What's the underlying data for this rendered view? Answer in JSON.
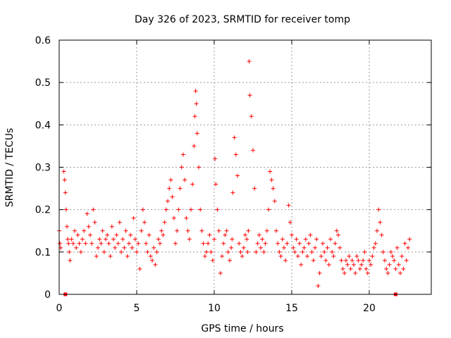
{
  "chart_data": {
    "type": "scatter",
    "title": "Day 326 of 2023, SRMTID for receiver tomp",
    "xlabel": "GPS time / hours",
    "ylabel": "SRMTID / TECUs",
    "xlim": [
      0,
      24
    ],
    "ylim": [
      0,
      0.6
    ],
    "xticks": [
      0,
      5,
      10,
      15,
      20
    ],
    "yticks": [
      0,
      0.1,
      0.2,
      0.3,
      0.4,
      0.5,
      0.6
    ],
    "ytick_labels": [
      "0",
      "0.1",
      "0.2",
      "0.3",
      "0.4",
      "0.5",
      "0.6"
    ],
    "grid": true,
    "marker": "+",
    "color": "#ff0000",
    "series": [
      {
        "name": "SRMTID",
        "x": [
          0.0,
          0.05,
          0.1,
          0.3,
          0.35,
          0.4,
          0.45,
          0.5,
          0.55,
          0.6,
          0.65,
          0.7,
          0.8,
          0.9,
          1.0,
          1.1,
          1.2,
          1.3,
          1.4,
          1.5,
          1.6,
          1.7,
          1.8,
          1.9,
          2.0,
          2.1,
          2.2,
          2.3,
          2.4,
          2.5,
          2.6,
          2.7,
          2.8,
          2.9,
          3.0,
          3.1,
          3.2,
          3.3,
          3.4,
          3.5,
          3.6,
          3.7,
          3.8,
          3.9,
          4.0,
          4.1,
          4.2,
          4.3,
          4.4,
          4.5,
          4.6,
          4.7,
          4.8,
          4.9,
          5.0,
          5.1,
          5.2,
          5.3,
          5.4,
          5.5,
          5.6,
          5.7,
          5.8,
          5.9,
          6.0,
          6.1,
          6.2,
          6.3,
          6.4,
          6.5,
          6.6,
          6.7,
          6.8,
          6.9,
          7.0,
          7.1,
          7.2,
          7.3,
          7.4,
          7.5,
          7.6,
          7.7,
          7.8,
          7.9,
          8.0,
          8.1,
          8.2,
          8.3,
          8.4,
          8.5,
          8.6,
          8.7,
          8.75,
          8.8,
          8.85,
          8.9,
          9.0,
          9.1,
          9.2,
          9.3,
          9.4,
          9.5,
          9.6,
          9.7,
          9.8,
          9.9,
          10.0,
          10.05,
          10.1,
          10.2,
          10.3,
          10.4,
          10.5,
          10.6,
          10.7,
          10.8,
          10.9,
          11.0,
          11.1,
          11.15,
          11.2,
          11.3,
          11.4,
          11.5,
          11.6,
          11.7,
          11.8,
          11.9,
          12.0,
          12.1,
          12.15,
          12.2,
          12.25,
          12.3,
          12.4,
          12.5,
          12.6,
          12.7,
          12.8,
          12.9,
          13.0,
          13.1,
          13.2,
          13.3,
          13.4,
          13.5,
          13.6,
          13.7,
          13.8,
          13.9,
          14.0,
          14.1,
          14.2,
          14.3,
          14.4,
          14.5,
          14.6,
          14.7,
          14.8,
          14.9,
          15.0,
          15.1,
          15.2,
          15.3,
          15.4,
          15.5,
          15.6,
          15.7,
          15.8,
          15.9,
          16.0,
          16.1,
          16.2,
          16.3,
          16.4,
          16.5,
          16.6,
          16.7,
          16.8,
          16.9,
          17.0,
          17.1,
          17.2,
          17.3,
          17.4,
          17.5,
          17.6,
          17.7,
          17.8,
          17.9,
          18.0,
          18.1,
          18.2,
          18.3,
          18.4,
          18.5,
          18.6,
          18.7,
          18.8,
          18.9,
          19.0,
          19.1,
          19.2,
          19.3,
          19.4,
          19.5,
          19.6,
          19.7,
          19.8,
          19.9,
          20.0,
          20.1,
          20.2,
          20.3,
          20.4,
          20.5,
          20.6,
          20.7,
          20.8,
          20.9,
          21.0,
          21.1,
          21.2,
          21.3,
          21.4,
          21.5,
          21.6,
          21.7,
          21.8,
          21.9,
          22.0,
          22.1,
          22.2,
          22.3,
          22.4,
          22.5,
          22.6
        ],
        "y": [
          0.15,
          0.12,
          0.11,
          0.29,
          0.27,
          0.24,
          0.2,
          0.16,
          0.13,
          0.12,
          0.1,
          0.08,
          0.13,
          0.12,
          0.15,
          0.11,
          0.14,
          0.12,
          0.1,
          0.13,
          0.15,
          0.12,
          0.19,
          0.16,
          0.14,
          0.12,
          0.2,
          0.17,
          0.09,
          0.11,
          0.13,
          0.12,
          0.15,
          0.1,
          0.13,
          0.14,
          0.12,
          0.09,
          0.16,
          0.13,
          0.11,
          0.14,
          0.12,
          0.17,
          0.1,
          0.13,
          0.11,
          0.15,
          0.09,
          0.12,
          0.14,
          0.11,
          0.18,
          0.13,
          0.1,
          0.12,
          0.06,
          0.15,
          0.2,
          0.17,
          0.12,
          0.1,
          0.14,
          0.09,
          0.08,
          0.11,
          0.07,
          0.1,
          0.13,
          0.12,
          0.15,
          0.14,
          0.17,
          0.2,
          0.22,
          0.25,
          0.27,
          0.23,
          0.18,
          0.12,
          0.15,
          0.2,
          0.25,
          0.3,
          0.33,
          0.27,
          0.18,
          0.15,
          0.13,
          0.2,
          0.26,
          0.35,
          0.42,
          0.48,
          0.45,
          0.38,
          0.3,
          0.2,
          0.15,
          0.12,
          0.09,
          0.1,
          0.12,
          0.14,
          0.1,
          0.08,
          0.13,
          0.32,
          0.26,
          0.2,
          0.15,
          0.05,
          0.09,
          0.12,
          0.14,
          0.15,
          0.1,
          0.08,
          0.11,
          0.13,
          0.24,
          0.37,
          0.33,
          0.28,
          0.12,
          0.1,
          0.09,
          0.11,
          0.14,
          0.13,
          0.1,
          0.15,
          0.55,
          0.47,
          0.42,
          0.34,
          0.25,
          0.1,
          0.12,
          0.14,
          0.11,
          0.13,
          0.1,
          0.12,
          0.15,
          0.2,
          0.29,
          0.27,
          0.25,
          0.22,
          0.15,
          0.12,
          0.1,
          0.09,
          0.13,
          0.11,
          0.08,
          0.12,
          0.21,
          0.17,
          0.14,
          0.11,
          0.1,
          0.13,
          0.09,
          0.12,
          0.07,
          0.1,
          0.11,
          0.13,
          0.09,
          0.12,
          0.14,
          0.1,
          0.08,
          0.11,
          0.13,
          0.02,
          0.05,
          0.09,
          0.12,
          0.1,
          0.08,
          0.11,
          0.07,
          0.13,
          0.1,
          0.09,
          0.12,
          0.15,
          0.14,
          0.11,
          0.08,
          0.06,
          0.05,
          0.08,
          0.07,
          0.09,
          0.06,
          0.08,
          0.07,
          0.05,
          0.09,
          0.08,
          0.06,
          0.07,
          0.08,
          0.1,
          0.06,
          0.05,
          0.08,
          0.07,
          0.09,
          0.11,
          0.12,
          0.15,
          0.2,
          0.17,
          0.14,
          0.1,
          0.08,
          0.06,
          0.05,
          0.07,
          0.1,
          0.09,
          0.08,
          0.06,
          0.11,
          0.07,
          0.05,
          0.09,
          0.06,
          0.12,
          0.08,
          0.11,
          0.13
        ]
      }
    ],
    "baseline_markers": {
      "x": [
        0.4,
        21.7
      ],
      "y": [
        0,
        0
      ]
    }
  }
}
